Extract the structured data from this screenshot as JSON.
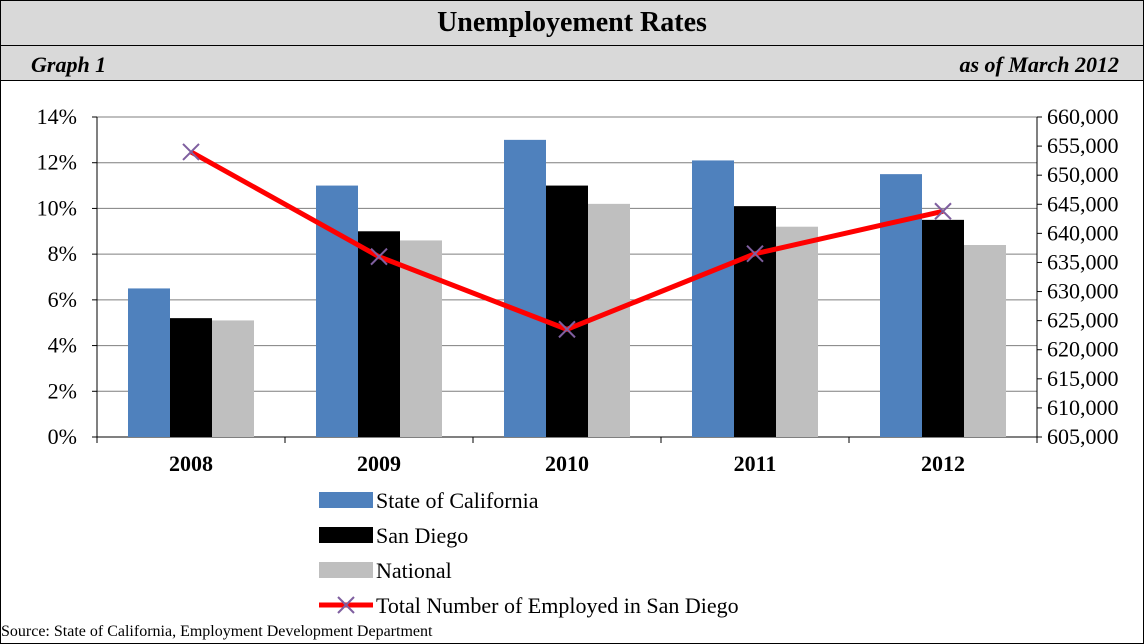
{
  "header": {
    "title": "Unemployement Rates",
    "graph_label": "Graph 1",
    "date_label": "as of March 2012"
  },
  "footer": {
    "source": "Source: State of California, Employment Development Department"
  },
  "colors": {
    "state": "#4f81bd",
    "san_diego": "#000000",
    "national": "#bfbfbf",
    "employed_line": "#ff0000",
    "employed_marker": "#7f5fa0",
    "header_bg": "#d9d9d9",
    "grid": "#7f7f7f"
  },
  "chart_data": {
    "type": "bar",
    "title": "Unemployement Rates",
    "categories": [
      "2008",
      "2009",
      "2010",
      "2011",
      "2012"
    ],
    "series": [
      {
        "name": "State of California",
        "values": [
          6.5,
          11.0,
          13.0,
          12.1,
          11.5
        ],
        "axis": "left"
      },
      {
        "name": "San Diego",
        "values": [
          5.2,
          9.0,
          11.0,
          10.1,
          9.5
        ],
        "axis": "left"
      },
      {
        "name": "National",
        "values": [
          5.1,
          8.6,
          10.2,
          9.2,
          8.4
        ],
        "axis": "left"
      },
      {
        "name": "Total Number of Employed in San Diego",
        "type": "line",
        "values": [
          654000,
          636000,
          623500,
          636500,
          643800
        ],
        "axis": "right"
      }
    ],
    "ylim_left": [
      0,
      14
    ],
    "ylim_right": [
      605000,
      660000
    ],
    "yticks_left": [
      "0%",
      "2%",
      "4%",
      "6%",
      "8%",
      "10%",
      "12%",
      "14%"
    ],
    "yticks_right": [
      "605,000",
      "610,000",
      "615,000",
      "620,000",
      "625,000",
      "630,000",
      "635,000",
      "640,000",
      "645,000",
      "650,000",
      "655,000",
      "660,000"
    ],
    "grid": true,
    "legend": "bottom"
  }
}
